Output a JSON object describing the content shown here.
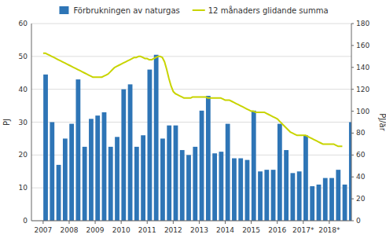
{
  "chart_data": {
    "type": "bar",
    "ylabel": "PJ",
    "y2label": "PJ/år",
    "xlim": [
      2006.55,
      2018.85
    ],
    "xticks": [
      2007,
      2008,
      2009,
      2010,
      2011,
      2012,
      2013,
      2014,
      2015,
      2016,
      {
        "value": 2017,
        "label": "2017*"
      },
      {
        "value": 2018,
        "label": "2018*"
      }
    ],
    "ylim": [
      0,
      60
    ],
    "yticks": [
      0,
      10,
      20,
      30,
      40,
      50,
      60
    ],
    "y2lim": [
      0,
      180
    ],
    "y2ticks": [
      0,
      20,
      40,
      60,
      80,
      100,
      120,
      140,
      160,
      180
    ],
    "grid": true,
    "legend": "top",
    "series": [
      {
        "name": "Förbrukningen av naturgas",
        "type": "bar",
        "color": "#2e75b6",
        "values": [
          44.5,
          30.0,
          17.0,
          25.0,
          29.5,
          43.0,
          22.5,
          31.0,
          32.0,
          33.0,
          22.5,
          25.5,
          40.0,
          41.5,
          22.5,
          26.0,
          46.0,
          50.5,
          25.0,
          29.0,
          29.0,
          21.5,
          20.0,
          22.5,
          33.5,
          38.0,
          20.5,
          21.0,
          29.5,
          19.0,
          19.0,
          18.5,
          33.5,
          15.0,
          15.5,
          15.5,
          29.5,
          21.5,
          14.5,
          15.0,
          26.0,
          10.5,
          11.0,
          13.0,
          13.0,
          15.5,
          11.0,
          30.0
        ]
      },
      {
        "name": "12 månaders glidande summa",
        "type": "line",
        "axis": "y2",
        "color": "#c8d400",
        "x": [
          2007.0,
          2007.083,
          2007.167,
          2007.25,
          2007.333,
          2007.417,
          2007.5,
          2007.583,
          2007.667,
          2007.75,
          2007.833,
          2007.917,
          2008.0,
          2008.083,
          2008.167,
          2008.25,
          2008.333,
          2008.417,
          2008.5,
          2008.583,
          2008.667,
          2008.75,
          2008.833,
          2008.917,
          2009.0,
          2009.083,
          2009.167,
          2009.25,
          2009.333,
          2009.417,
          2009.5,
          2009.583,
          2009.667,
          2009.75,
          2009.833,
          2009.917,
          2010.0,
          2010.083,
          2010.167,
          2010.25,
          2010.333,
          2010.417,
          2010.5,
          2010.583,
          2010.667,
          2010.75,
          2010.833,
          2010.917,
          2011.0,
          2011.083,
          2011.167,
          2011.25,
          2011.333,
          2011.417,
          2011.5,
          2011.583,
          2011.667,
          2011.75,
          2011.833,
          2011.917,
          2012.0,
          2012.083,
          2012.167,
          2012.25,
          2012.333,
          2012.417,
          2012.5,
          2012.583,
          2012.667,
          2012.75,
          2012.833,
          2012.917,
          2013.0,
          2013.083,
          2013.167,
          2013.25,
          2013.333,
          2013.417,
          2013.5,
          2013.583,
          2013.667,
          2013.75,
          2013.833,
          2013.917,
          2014.0,
          2014.083,
          2014.167,
          2014.25,
          2014.333,
          2014.417,
          2014.5,
          2014.583,
          2014.667,
          2014.75,
          2014.833,
          2014.917,
          2015.0,
          2015.083,
          2015.167,
          2015.25,
          2015.333,
          2015.417,
          2015.5,
          2015.583,
          2015.667,
          2015.75,
          2015.833,
          2015.917,
          2016.0,
          2016.083,
          2016.167,
          2016.25,
          2016.333,
          2016.417,
          2016.5,
          2016.583,
          2016.667,
          2016.75,
          2016.833,
          2016.917,
          2017.0,
          2017.083,
          2017.167,
          2017.25,
          2017.333,
          2017.417,
          2017.5,
          2017.583,
          2017.667,
          2017.75,
          2017.833,
          2017.917,
          2018.0,
          2018.083,
          2018.167,
          2018.25,
          2018.333,
          2018.417,
          2018.5
        ],
        "values": [
          153,
          153,
          152,
          151,
          150,
          149,
          148,
          147,
          146,
          145,
          144,
          143,
          142,
          141,
          140,
          139,
          138,
          137,
          136,
          135,
          134,
          133,
          132,
          131,
          131,
          131,
          131,
          131,
          132,
          133,
          134,
          136,
          138,
          140,
          141,
          142,
          143,
          144,
          145,
          146,
          147,
          148,
          149,
          149,
          150,
          150,
          149,
          148,
          148,
          147,
          147,
          148,
          149,
          150,
          150,
          149,
          145,
          138,
          130,
          123,
          118,
          116,
          115,
          114,
          113,
          112,
          112,
          112,
          112,
          113,
          113,
          113,
          113,
          113,
          113,
          113,
          112,
          112,
          112,
          112,
          112,
          112,
          112,
          111,
          110,
          110,
          110,
          109,
          108,
          107,
          106,
          105,
          104,
          103,
          102,
          101,
          100,
          100,
          99,
          99,
          99,
          99,
          99,
          98,
          97,
          96,
          95,
          94,
          93,
          91,
          89,
          87,
          85,
          83,
          81,
          80,
          79,
          78,
          78,
          78,
          78,
          78,
          77,
          76,
          75,
          74,
          73,
          72,
          71,
          70,
          70,
          70,
          70,
          70,
          70,
          69,
          68,
          68,
          68
        ]
      }
    ]
  }
}
